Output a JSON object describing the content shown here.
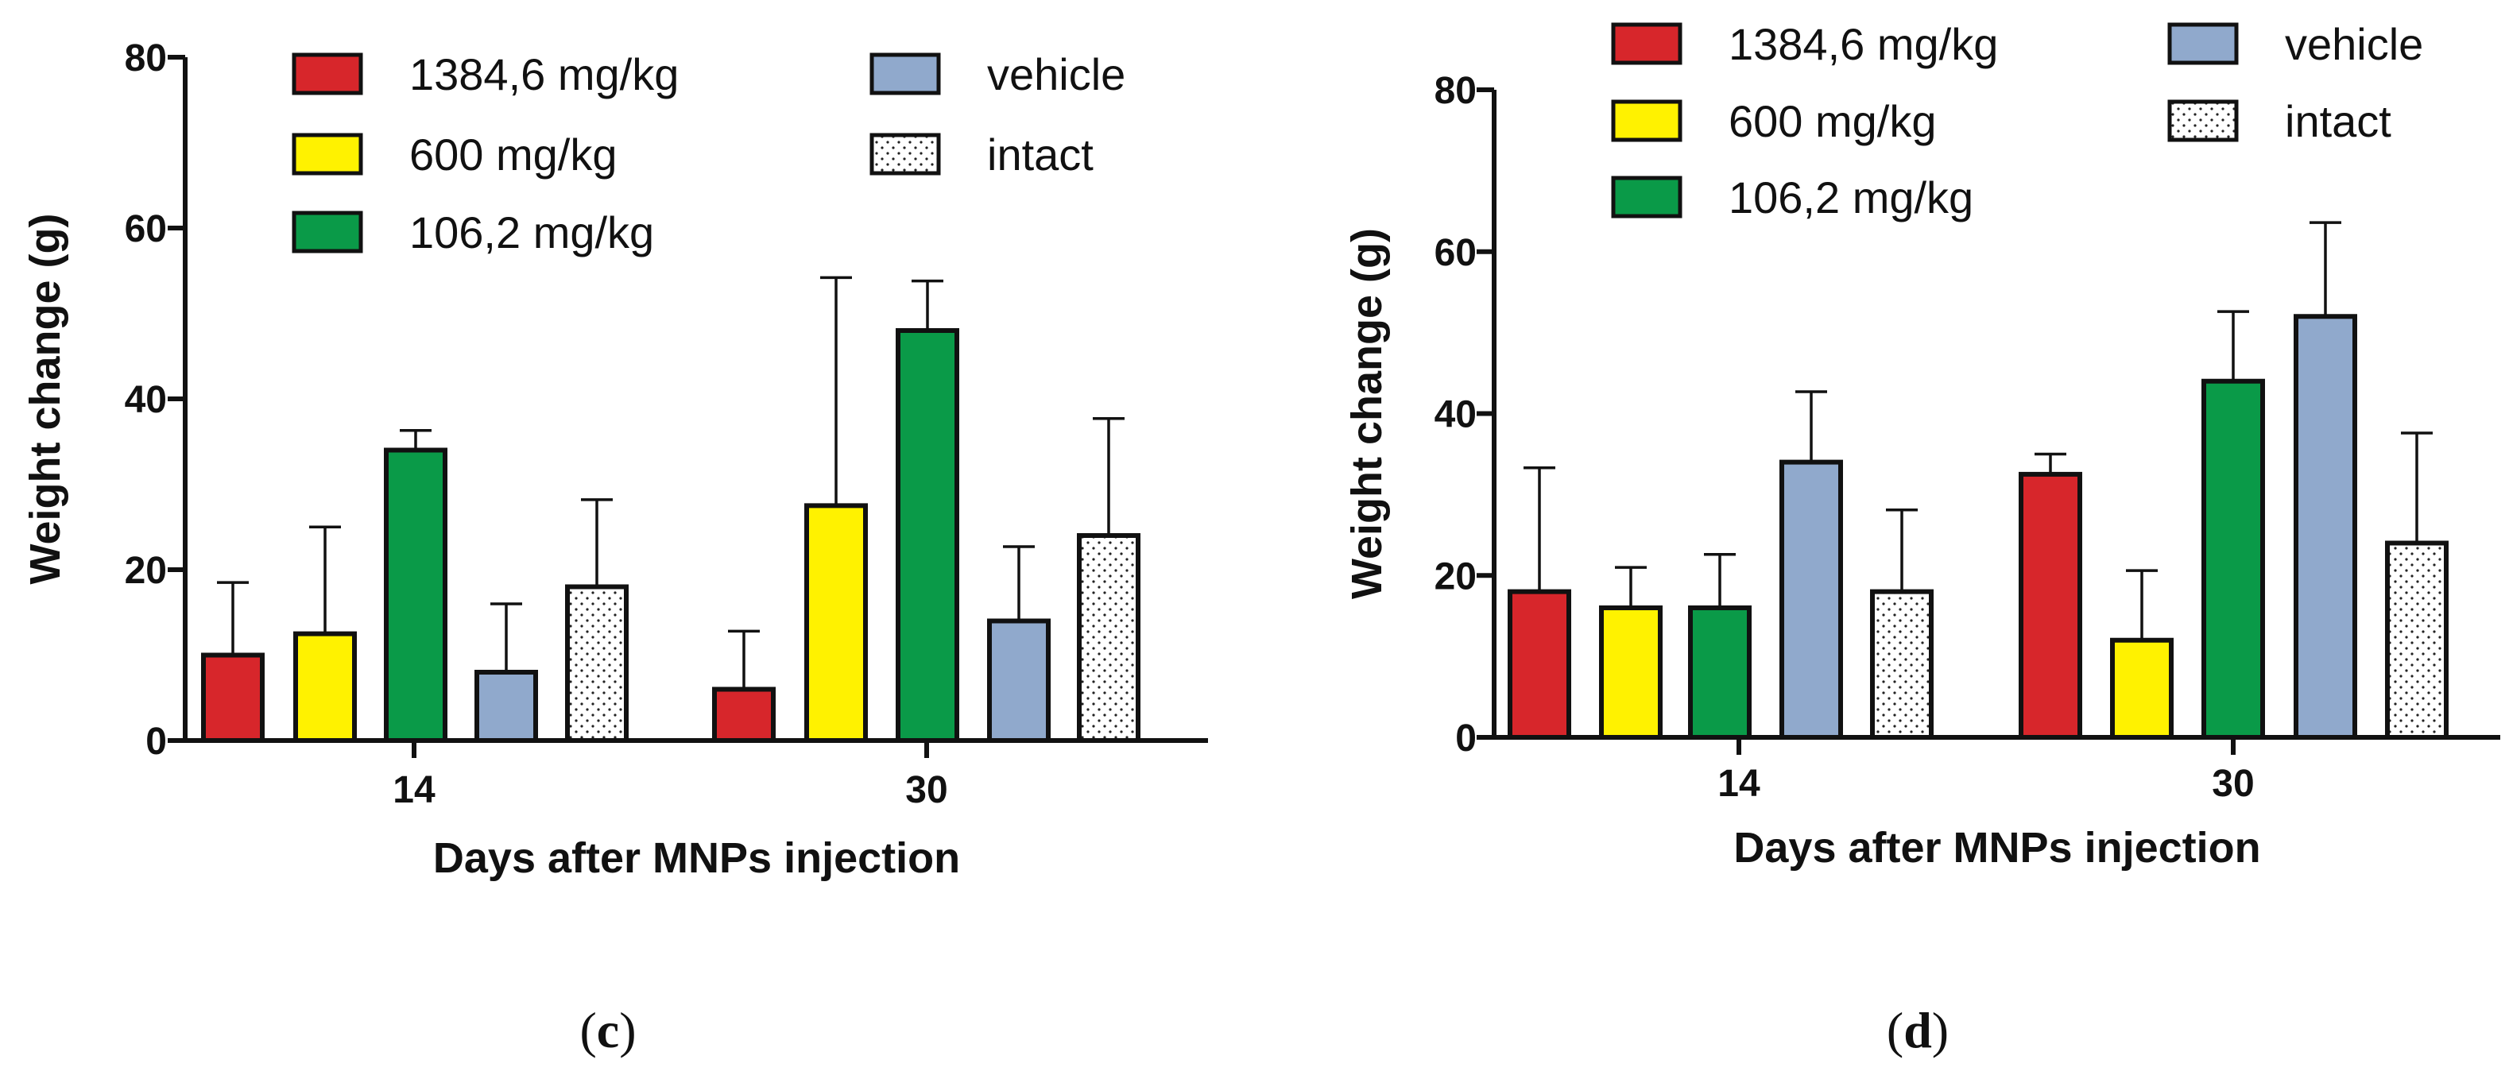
{
  "chart_data": [
    {
      "panel": "c",
      "type": "bar",
      "ylabel": "Weight change (g)",
      "xlabel": "Days after MNPs injection",
      "ylim": [
        0,
        80
      ],
      "yticks": [
        0,
        20,
        40,
        60,
        80
      ],
      "categories": [
        "14",
        "30"
      ],
      "series": [
        {
          "name": "1384,6 mg/kg",
          "color": "#d7262b",
          "pattern": "solid",
          "values": [
            10,
            6
          ],
          "errors": [
            8.5,
            6.8
          ]
        },
        {
          "name": "600 mg/kg",
          "color": "#fff200",
          "pattern": "solid",
          "values": [
            12.5,
            27.5
          ],
          "errors": [
            12.5,
            26.7
          ]
        },
        {
          "name": "106,2 mg/kg",
          "color": "#0a9a48",
          "pattern": "solid",
          "values": [
            34,
            48
          ],
          "errors": [
            2.3,
            5.8
          ]
        },
        {
          "name": "vehicle",
          "color": "#90a9cc",
          "pattern": "solid",
          "values": [
            8,
            14
          ],
          "errors": [
            8,
            8.7
          ]
        },
        {
          "name": "intact",
          "color": "#ffffff",
          "pattern": "dots",
          "values": [
            18,
            24
          ],
          "errors": [
            10.2,
            13.7
          ]
        }
      ],
      "legend": {
        "columns": [
          [
            "1384,6 mg/kg",
            "600 mg/kg",
            "106,2 mg/kg"
          ],
          [
            "vehicle",
            "intact"
          ]
        ]
      }
    },
    {
      "panel": "d",
      "type": "bar",
      "ylabel": "Weight change (g)",
      "xlabel": "Days after MNPs injection",
      "ylim": [
        0,
        80
      ],
      "yticks": [
        0,
        20,
        40,
        60,
        80
      ],
      "categories": [
        "14",
        "30"
      ],
      "series": [
        {
          "name": "1384,6 mg/kg",
          "color": "#d7262b",
          "pattern": "solid",
          "values": [
            18,
            32.5
          ],
          "errors": [
            15.3,
            2.5
          ]
        },
        {
          "name": "600 mg/kg",
          "color": "#fff200",
          "pattern": "solid",
          "values": [
            16,
            12
          ],
          "errors": [
            5,
            8.6
          ]
        },
        {
          "name": "106,2 mg/kg",
          "color": "#0a9a48",
          "pattern": "solid",
          "values": [
            16,
            44
          ],
          "errors": [
            6.6,
            8.6
          ]
        },
        {
          "name": "vehicle",
          "color": "#90a9cc",
          "pattern": "solid",
          "values": [
            34,
            52
          ],
          "errors": [
            8.7,
            11.6
          ]
        },
        {
          "name": "intact",
          "color": "#ffffff",
          "pattern": "dots",
          "values": [
            18,
            24
          ],
          "errors": [
            10.1,
            13.6
          ]
        }
      ],
      "legend": {
        "columns": [
          [
            "1384,6 mg/kg",
            "600 mg/kg",
            "106,2 mg/kg"
          ],
          [
            "vehicle",
            "intact"
          ]
        ]
      }
    }
  ],
  "panel_labels": {
    "c": {
      "open": "(",
      "letter": "c",
      "close": ")"
    },
    "d": {
      "open": "(",
      "letter": "d",
      "close": ")"
    }
  }
}
